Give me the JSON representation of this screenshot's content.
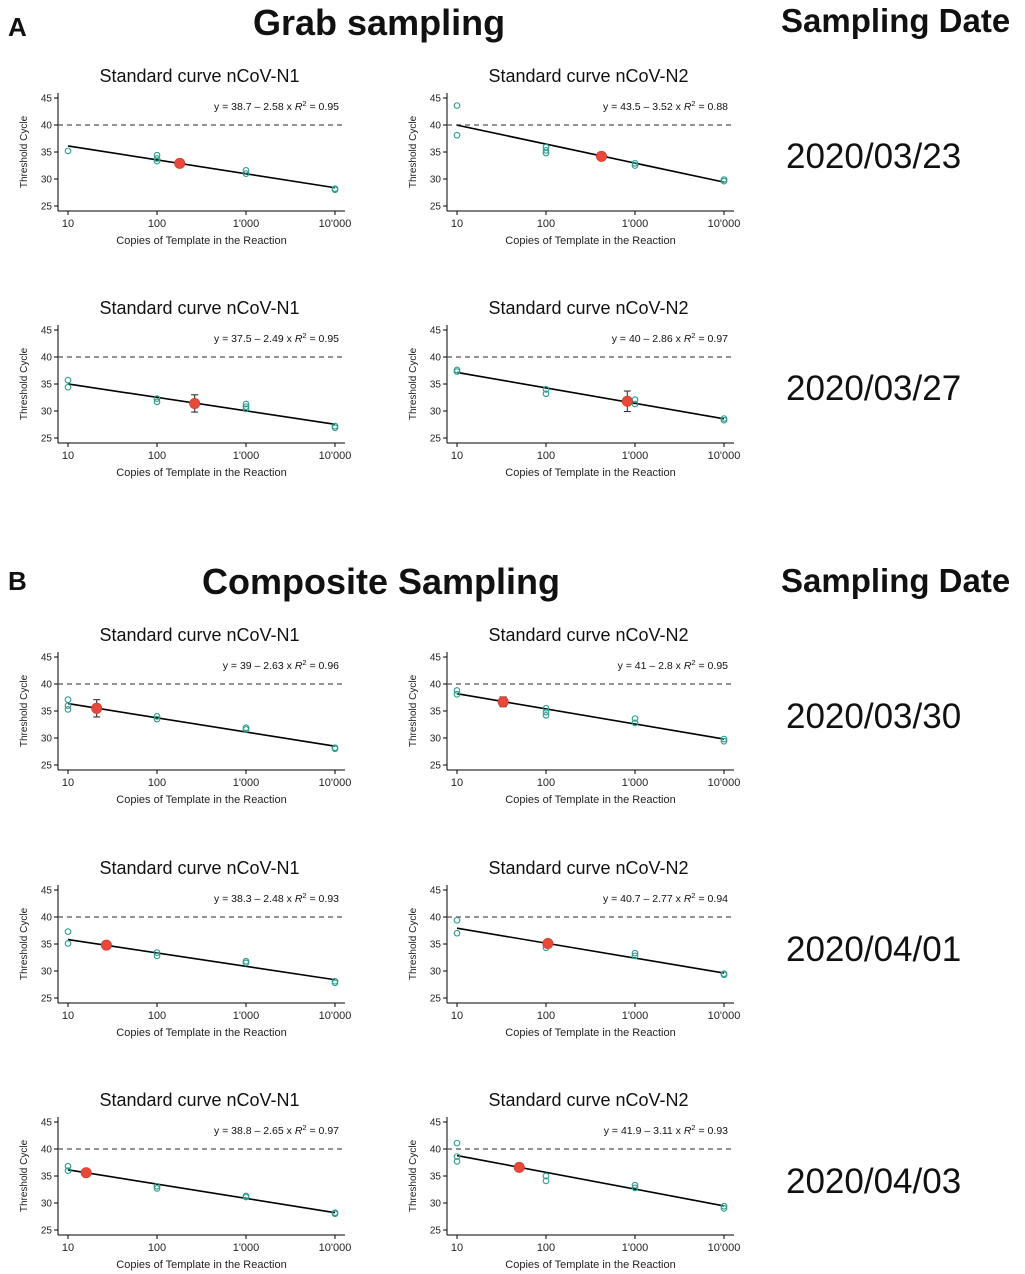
{
  "panels": [
    {
      "letter": "A",
      "title": "Grab sampling",
      "date_header": "Sampling Date"
    },
    {
      "letter": "B",
      "title": "Composite Sampling",
      "date_header": "Sampling Date"
    }
  ],
  "dates": [
    "2020/03/23",
    "2020/03/27",
    "2020/03/30",
    "2020/04/01",
    "2020/04/03"
  ],
  "chart_data": [
    {
      "type": "scatter",
      "panel": "A",
      "date": "2020/03/23",
      "title": "Standard curve nCoV-N1",
      "xlabel": "Copies of Template in the Reaction",
      "ylabel": "Threshold Cycle",
      "x_scale": "log10",
      "x_ticks": [
        "10",
        "100",
        "1'000",
        "10'000"
      ],
      "y_ticks": [
        "25",
        "30",
        "35",
        "40",
        "45"
      ],
      "xlim": [
        10,
        10000
      ],
      "ylim": [
        25,
        45
      ],
      "threshold": 40,
      "fit": {
        "intercept": 38.7,
        "slope": -2.58,
        "r2": 0.95
      },
      "equation": {
        "lhs": "y = 38.7 – 2.58 x",
        "r2": "= 0.95"
      },
      "standards": [
        {
          "x": 10,
          "y": 35.2
        },
        {
          "x": 100,
          "y": 34.4
        },
        {
          "x": 100,
          "y": 33.8
        },
        {
          "x": 100,
          "y": 33.3
        },
        {
          "x": 1000,
          "y": 31.6
        },
        {
          "x": 1000,
          "y": 31.0
        },
        {
          "x": 10000,
          "y": 28.2
        },
        {
          "x": 10000,
          "y": 28.0
        }
      ],
      "sample": {
        "x": 180,
        "y": 32.9,
        "err": 0
      }
    },
    {
      "type": "scatter",
      "panel": "A",
      "date": "2020/03/23",
      "title": "Standard curve nCoV-N2",
      "xlabel": "Copies of Template in the Reaction",
      "ylabel": "Threshold Cycle",
      "x_scale": "log10",
      "x_ticks": [
        "10",
        "100",
        "1'000",
        "10'000"
      ],
      "y_ticks": [
        "25",
        "30",
        "35",
        "40",
        "45"
      ],
      "xlim": [
        10,
        10000
      ],
      "ylim": [
        25,
        45
      ],
      "threshold": 40,
      "fit": {
        "intercept": 43.5,
        "slope": -3.52,
        "r2": 0.88
      },
      "equation": {
        "lhs": "y = 43.5 – 3.52 x",
        "r2": "= 0.88"
      },
      "standards": [
        {
          "x": 10,
          "y": 43.6
        },
        {
          "x": 10,
          "y": 38.1
        },
        {
          "x": 100,
          "y": 35.9
        },
        {
          "x": 100,
          "y": 35.3
        },
        {
          "x": 100,
          "y": 34.8
        },
        {
          "x": 1000,
          "y": 32.9
        },
        {
          "x": 1000,
          "y": 32.5
        },
        {
          "x": 10000,
          "y": 29.9
        },
        {
          "x": 10000,
          "y": 29.6
        }
      ],
      "sample": {
        "x": 420,
        "y": 34.2,
        "err": 0
      }
    },
    {
      "type": "scatter",
      "panel": "A",
      "date": "2020/03/27",
      "title": "Standard curve nCoV-N1",
      "xlabel": "Copies of Template in the Reaction",
      "ylabel": "Threshold Cycle",
      "x_scale": "log10",
      "x_ticks": [
        "10",
        "100",
        "1'000",
        "10'000"
      ],
      "y_ticks": [
        "25",
        "30",
        "35",
        "40",
        "45"
      ],
      "xlim": [
        10,
        10000
      ],
      "ylim": [
        25,
        45
      ],
      "threshold": 40,
      "fit": {
        "intercept": 37.5,
        "slope": -2.49,
        "r2": 0.95
      },
      "equation": {
        "lhs": "y = 37.5 – 2.49 x",
        "r2": "= 0.95"
      },
      "standards": [
        {
          "x": 10,
          "y": 35.7
        },
        {
          "x": 10,
          "y": 34.4
        },
        {
          "x": 100,
          "y": 32.3
        },
        {
          "x": 100,
          "y": 31.7
        },
        {
          "x": 1000,
          "y": 31.3
        },
        {
          "x": 1000,
          "y": 30.8
        },
        {
          "x": 1000,
          "y": 30.4
        },
        {
          "x": 10000,
          "y": 27.2
        },
        {
          "x": 10000,
          "y": 26.9
        }
      ],
      "sample": {
        "x": 265,
        "y": 31.4,
        "err": 1.6
      }
    },
    {
      "type": "scatter",
      "panel": "A",
      "date": "2020/03/27",
      "title": "Standard curve nCoV-N2",
      "xlabel": "Copies of Template in the Reaction",
      "ylabel": "Threshold Cycle",
      "x_scale": "log10",
      "x_ticks": [
        "10",
        "100",
        "1'000",
        "10'000"
      ],
      "y_ticks": [
        "25",
        "30",
        "35",
        "40",
        "45"
      ],
      "xlim": [
        10,
        10000
      ],
      "ylim": [
        25,
        45
      ],
      "threshold": 40,
      "fit": {
        "intercept": 40,
        "slope": -2.86,
        "r2": 0.97
      },
      "equation": {
        "lhs": "y = 40 – 2.86 x",
        "r2": "= 0.97"
      },
      "standards": [
        {
          "x": 10,
          "y": 37.6
        },
        {
          "x": 10,
          "y": 37.3
        },
        {
          "x": 100,
          "y": 34.0
        },
        {
          "x": 100,
          "y": 33.2
        },
        {
          "x": 1000,
          "y": 32.1
        },
        {
          "x": 1000,
          "y": 31.3
        },
        {
          "x": 10000,
          "y": 28.6
        },
        {
          "x": 10000,
          "y": 28.3
        }
      ],
      "sample": {
        "x": 820,
        "y": 31.8,
        "err": 1.9
      }
    },
    {
      "type": "scatter",
      "panel": "B",
      "date": "2020/03/30",
      "title": "Standard curve nCoV-N1",
      "xlabel": "Copies of Template in the Reaction",
      "ylabel": "Threshold Cycle",
      "x_scale": "log10",
      "x_ticks": [
        "10",
        "100",
        "1'000",
        "10'000"
      ],
      "y_ticks": [
        "25",
        "30",
        "35",
        "40",
        "45"
      ],
      "xlim": [
        10,
        10000
      ],
      "ylim": [
        25,
        45
      ],
      "threshold": 40,
      "fit": {
        "intercept": 39,
        "slope": -2.63,
        "r2": 0.96
      },
      "equation": {
        "lhs": "y = 39 – 2.63 x",
        "r2": "= 0.96"
      },
      "standards": [
        {
          "x": 10,
          "y": 37.1
        },
        {
          "x": 10,
          "y": 36.0
        },
        {
          "x": 10,
          "y": 35.3
        },
        {
          "x": 100,
          "y": 34.0
        },
        {
          "x": 100,
          "y": 33.5
        },
        {
          "x": 1000,
          "y": 31.9
        },
        {
          "x": 1000,
          "y": 31.6
        },
        {
          "x": 10000,
          "y": 28.2
        },
        {
          "x": 10000,
          "y": 28.0
        }
      ],
      "sample": {
        "x": 21,
        "y": 35.5,
        "err": 1.6
      }
    },
    {
      "type": "scatter",
      "panel": "B",
      "date": "2020/03/30",
      "title": "Standard curve nCoV-N2",
      "xlabel": "Copies of Template in the Reaction",
      "ylabel": "Threshold Cycle",
      "x_scale": "log10",
      "x_ticks": [
        "10",
        "100",
        "1'000",
        "10'000"
      ],
      "y_ticks": [
        "25",
        "30",
        "35",
        "40",
        "45"
      ],
      "xlim": [
        10,
        10000
      ],
      "ylim": [
        25,
        45
      ],
      "threshold": 40,
      "fit": {
        "intercept": 41,
        "slope": -2.8,
        "r2": 0.95
      },
      "equation": {
        "lhs": "y = 41 – 2.8 x",
        "r2": "= 0.95"
      },
      "standards": [
        {
          "x": 10,
          "y": 38.8
        },
        {
          "x": 10,
          "y": 38.1
        },
        {
          "x": 100,
          "y": 35.5
        },
        {
          "x": 100,
          "y": 34.8
        },
        {
          "x": 100,
          "y": 34.2
        },
        {
          "x": 1000,
          "y": 33.6
        },
        {
          "x": 1000,
          "y": 32.8
        },
        {
          "x": 10000,
          "y": 29.8
        },
        {
          "x": 10000,
          "y": 29.4
        }
      ],
      "sample": {
        "x": 33,
        "y": 36.7,
        "err": 0.9
      }
    },
    {
      "type": "scatter",
      "panel": "B",
      "date": "2020/04/01",
      "title": "Standard curve nCoV-N1",
      "xlabel": "Copies of Template in the Reaction",
      "ylabel": "Threshold Cycle",
      "x_scale": "log10",
      "x_ticks": [
        "10",
        "100",
        "1'000",
        "10'000"
      ],
      "y_ticks": [
        "25",
        "30",
        "35",
        "40",
        "45"
      ],
      "xlim": [
        10,
        10000
      ],
      "ylim": [
        25,
        45
      ],
      "threshold": 40,
      "fit": {
        "intercept": 38.3,
        "slope": -2.48,
        "r2": 0.93
      },
      "equation": {
        "lhs": "y = 38.3 – 2.48 x",
        "r2": "= 0.93"
      },
      "standards": [
        {
          "x": 10,
          "y": 37.3
        },
        {
          "x": 10,
          "y": 35.1
        },
        {
          "x": 100,
          "y": 33.4
        },
        {
          "x": 100,
          "y": 32.8
        },
        {
          "x": 1000,
          "y": 31.8
        },
        {
          "x": 1000,
          "y": 31.5
        },
        {
          "x": 10000,
          "y": 28.1
        },
        {
          "x": 10000,
          "y": 27.8
        }
      ],
      "sample": {
        "x": 27,
        "y": 34.8,
        "err": 0
      }
    },
    {
      "type": "scatter",
      "panel": "B",
      "date": "2020/04/01",
      "title": "Standard curve nCoV-N2",
      "xlabel": "Copies of Template in the Reaction",
      "ylabel": "Threshold Cycle",
      "x_scale": "log10",
      "x_ticks": [
        "10",
        "100",
        "1'000",
        "10'000"
      ],
      "y_ticks": [
        "25",
        "30",
        "35",
        "40",
        "45"
      ],
      "xlim": [
        10,
        10000
      ],
      "ylim": [
        25,
        45
      ],
      "threshold": 40,
      "fit": {
        "intercept": 40.7,
        "slope": -2.77,
        "r2": 0.94
      },
      "equation": {
        "lhs": "y = 40.7 – 2.77 x",
        "r2": "= 0.94"
      },
      "standards": [
        {
          "x": 10,
          "y": 39.4
        },
        {
          "x": 10,
          "y": 37.0
        },
        {
          "x": 100,
          "y": 34.9
        },
        {
          "x": 100,
          "y": 34.3
        },
        {
          "x": 1000,
          "y": 33.3
        },
        {
          "x": 1000,
          "y": 32.8
        },
        {
          "x": 10000,
          "y": 29.5
        },
        {
          "x": 10000,
          "y": 29.3
        }
      ],
      "sample": {
        "x": 105,
        "y": 35.1,
        "err": 0.6
      }
    },
    {
      "type": "scatter",
      "panel": "B",
      "date": "2020/04/03",
      "title": "Standard curve nCoV-N1",
      "xlabel": "Copies of Template in the Reaction",
      "ylabel": "Threshold Cycle",
      "x_scale": "log10",
      "x_ticks": [
        "10",
        "100",
        "1'000",
        "10'000"
      ],
      "y_ticks": [
        "25",
        "30",
        "35",
        "40",
        "45"
      ],
      "xlim": [
        10,
        10000
      ],
      "ylim": [
        25,
        45
      ],
      "threshold": 40,
      "fit": {
        "intercept": 38.8,
        "slope": -2.65,
        "r2": 0.97
      },
      "equation": {
        "lhs": "y = 38.8 – 2.65 x",
        "r2": "= 0.97"
      },
      "standards": [
        {
          "x": 10,
          "y": 36.8
        },
        {
          "x": 10,
          "y": 36.0
        },
        {
          "x": 100,
          "y": 33.1
        },
        {
          "x": 100,
          "y": 32.7
        },
        {
          "x": 1000,
          "y": 31.3
        },
        {
          "x": 1000,
          "y": 31.1
        },
        {
          "x": 10000,
          "y": 28.2
        },
        {
          "x": 10000,
          "y": 28.0
        }
      ],
      "sample": {
        "x": 16,
        "y": 35.6,
        "err": 0
      }
    },
    {
      "type": "scatter",
      "panel": "B",
      "date": "2020/04/03",
      "title": "Standard curve nCoV-N2",
      "xlabel": "Copies of Template in the Reaction",
      "ylabel": "Threshold Cycle",
      "x_scale": "log10",
      "x_ticks": [
        "10",
        "100",
        "1'000",
        "10'000"
      ],
      "y_ticks": [
        "25",
        "30",
        "35",
        "40",
        "45"
      ],
      "xlim": [
        10,
        10000
      ],
      "ylim": [
        25,
        45
      ],
      "threshold": 40,
      "fit": {
        "intercept": 41.9,
        "slope": -3.11,
        "r2": 0.93
      },
      "equation": {
        "lhs": "y = 41.9 – 3.11 x",
        "r2": "= 0.93"
      },
      "standards": [
        {
          "x": 10,
          "y": 41.1
        },
        {
          "x": 10,
          "y": 38.6
        },
        {
          "x": 10,
          "y": 37.7
        },
        {
          "x": 100,
          "y": 35.0
        },
        {
          "x": 100,
          "y": 34.1
        },
        {
          "x": 1000,
          "y": 33.3
        },
        {
          "x": 1000,
          "y": 32.8
        },
        {
          "x": 10000,
          "y": 29.4
        },
        {
          "x": 10000,
          "y": 29.0
        }
      ],
      "sample": {
        "x": 50,
        "y": 36.6,
        "err": 0
      }
    }
  ],
  "colors": {
    "standard": "#2a9d8f",
    "sample": "#e8483a",
    "fit": "#000000",
    "threshold": "#555555"
  }
}
